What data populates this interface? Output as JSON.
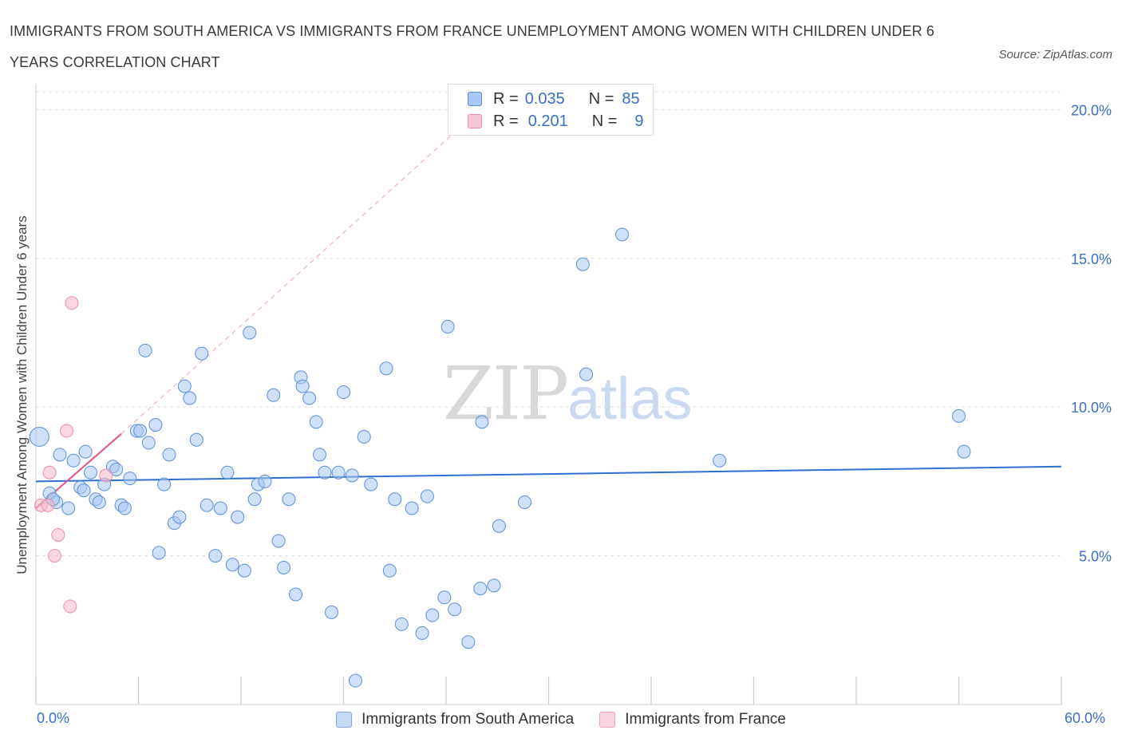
{
  "title": "IMMIGRANTS FROM SOUTH AMERICA VS IMMIGRANTS FROM FRANCE UNEMPLOYMENT AMONG WOMEN WITH CHILDREN UNDER 6 YEARS CORRELATION CHART",
  "source": "Source: ZipAtlas.com",
  "watermark": {
    "zip": "ZIP",
    "atlas": "atlas"
  },
  "colors": {
    "blue_fill": "#a9c7f2",
    "blue_stroke": "#5b8fd9",
    "blue_line": "#2e6fd1",
    "pink_fill": "#f5b6c9",
    "pink_stroke": "#e98fa9",
    "pink_line": "#e0608a",
    "axis_text": "#3a6fc4",
    "grid": "#dddddd"
  },
  "legend_top": {
    "rows": [
      {
        "r_label": "R =",
        "r_value": "0.035",
        "n_label": "N =",
        "n_value": "85"
      },
      {
        "r_label": "R =",
        "r_value": "0.201",
        "n_label": "N =",
        "n_value": "9"
      }
    ]
  },
  "chart_data": {
    "type": "scatter",
    "title": "IMMIGRANTS FROM SOUTH AMERICA VS IMMIGRANTS FROM FRANCE UNEMPLOYMENT AMONG WOMEN WITH CHILDREN UNDER 6 YEARS CORRELATION CHART",
    "xlabel": "",
    "ylabel": "Unemployment Among Women with Children Under 6 years",
    "xlim": [
      0,
      60
    ],
    "ylim": [
      0,
      20.6
    ],
    "x_tick_labels": [
      "0.0%",
      "60.0%"
    ],
    "y_ticks": [
      5,
      10,
      15,
      20
    ],
    "y_tick_labels": [
      "5.0%",
      "10.0%",
      "15.0%",
      "20.0%"
    ],
    "grid": true,
    "legend_position": "bottom",
    "series": [
      {
        "name": "Immigrants from South America",
        "color": "#a9c7f2",
        "R": 0.035,
        "N": 85,
        "trend": {
          "x": [
            0,
            60
          ],
          "y": [
            7.5,
            8.0
          ],
          "style": "solid"
        },
        "points": [
          [
            0.2,
            9.0
          ],
          [
            0.8,
            7.1
          ],
          [
            1.2,
            6.8
          ],
          [
            1.0,
            6.9
          ],
          [
            1.4,
            8.4
          ],
          [
            1.9,
            6.6
          ],
          [
            2.2,
            8.2
          ],
          [
            2.6,
            7.3
          ],
          [
            2.8,
            7.2
          ],
          [
            2.9,
            8.5
          ],
          [
            3.2,
            7.8
          ],
          [
            3.5,
            6.9
          ],
          [
            3.7,
            6.8
          ],
          [
            4.0,
            7.4
          ],
          [
            4.5,
            8.0
          ],
          [
            4.7,
            7.9
          ],
          [
            5.0,
            6.7
          ],
          [
            5.2,
            6.6
          ],
          [
            5.5,
            7.6
          ],
          [
            5.9,
            9.2
          ],
          [
            6.1,
            9.2
          ],
          [
            6.4,
            11.9
          ],
          [
            6.6,
            8.8
          ],
          [
            7.0,
            9.4
          ],
          [
            7.2,
            5.1
          ],
          [
            7.5,
            7.4
          ],
          [
            7.8,
            8.4
          ],
          [
            8.1,
            6.1
          ],
          [
            8.4,
            6.3
          ],
          [
            8.7,
            10.7
          ],
          [
            9.0,
            10.3
          ],
          [
            9.4,
            8.9
          ],
          [
            9.7,
            11.8
          ],
          [
            10.0,
            6.7
          ],
          [
            10.5,
            5.0
          ],
          [
            10.8,
            6.6
          ],
          [
            11.2,
            7.8
          ],
          [
            11.5,
            4.7
          ],
          [
            11.8,
            6.3
          ],
          [
            12.2,
            4.5
          ],
          [
            12.5,
            12.5
          ],
          [
            12.8,
            6.9
          ],
          [
            13.0,
            7.4
          ],
          [
            13.4,
            7.5
          ],
          [
            13.9,
            10.4
          ],
          [
            14.2,
            5.5
          ],
          [
            14.5,
            4.6
          ],
          [
            14.8,
            6.9
          ],
          [
            15.2,
            3.7
          ],
          [
            15.5,
            11.0
          ],
          [
            15.6,
            10.7
          ],
          [
            16.0,
            10.3
          ],
          [
            16.4,
            9.5
          ],
          [
            16.6,
            8.4
          ],
          [
            16.9,
            7.8
          ],
          [
            17.3,
            3.1
          ],
          [
            17.7,
            7.8
          ],
          [
            18.0,
            10.5
          ],
          [
            18.5,
            7.7
          ],
          [
            18.7,
            0.8
          ],
          [
            19.2,
            9.0
          ],
          [
            19.6,
            7.4
          ],
          [
            20.5,
            11.3
          ],
          [
            20.7,
            4.5
          ],
          [
            21.0,
            6.9
          ],
          [
            21.4,
            2.7
          ],
          [
            22.0,
            6.6
          ],
          [
            22.6,
            2.4
          ],
          [
            22.9,
            7.0
          ],
          [
            23.2,
            3.0
          ],
          [
            23.9,
            3.6
          ],
          [
            24.1,
            12.7
          ],
          [
            24.5,
            3.2
          ],
          [
            25.3,
            2.1
          ],
          [
            26.0,
            3.9
          ],
          [
            26.1,
            9.5
          ],
          [
            26.8,
            4.0
          ],
          [
            27.1,
            6.0
          ],
          [
            28.6,
            6.8
          ],
          [
            32.0,
            14.8
          ],
          [
            32.2,
            11.1
          ],
          [
            34.3,
            15.8
          ],
          [
            40.0,
            8.2
          ],
          [
            54.0,
            9.7
          ],
          [
            54.3,
            8.5
          ]
        ]
      },
      {
        "name": "Immigrants from France",
        "color": "#f5b6c9",
        "R": 0.201,
        "N": 9,
        "trend": {
          "x": [
            0,
            5
          ],
          "y": [
            6.6,
            9.1
          ],
          "style": "solid",
          "dashed_extension_to": [
            25,
            19.5
          ]
        },
        "points": [
          [
            0.3,
            6.7
          ],
          [
            0.7,
            6.7
          ],
          [
            0.8,
            7.8
          ],
          [
            1.1,
            5.0
          ],
          [
            1.3,
            5.7
          ],
          [
            1.8,
            9.2
          ],
          [
            2.0,
            3.3
          ],
          [
            2.1,
            13.5
          ],
          [
            4.1,
            7.7
          ]
        ]
      }
    ]
  },
  "bottom_legend": [
    {
      "label": "Immigrants from South America"
    },
    {
      "label": "Immigrants from France"
    }
  ]
}
